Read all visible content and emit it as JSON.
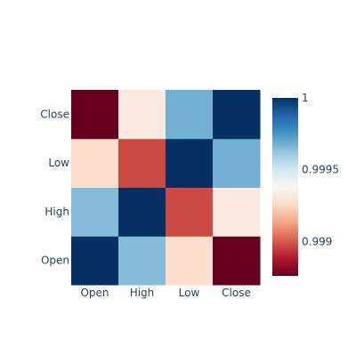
{
  "chart_data": {
    "type": "heatmap",
    "title": "",
    "xlabel": "",
    "ylabel": "",
    "x_categories": [
      "Open",
      "High",
      "Low",
      "Close"
    ],
    "y_categories": [
      "Open",
      "High",
      "Low",
      "Close"
    ],
    "z": [
      [
        1.0,
        0.99965,
        0.99927,
        0.99876
      ],
      [
        0.99965,
        1.0,
        0.99897,
        0.99932
      ],
      [
        0.99927,
        0.99897,
        1.0,
        0.99968
      ],
      [
        0.99876,
        0.99932,
        0.99968,
        1.0
      ]
    ],
    "colorscale": {
      "name": "RdBu",
      "stops": [
        [
          0.0,
          "#67001f"
        ],
        [
          0.1,
          "#b2182b"
        ],
        [
          0.2,
          "#d6604d"
        ],
        [
          0.3,
          "#f4a582"
        ],
        [
          0.4,
          "#fddbc7"
        ],
        [
          0.5,
          "#f7f7f7"
        ],
        [
          0.6,
          "#d1e5f0"
        ],
        [
          0.7,
          "#92c5de"
        ],
        [
          0.8,
          "#4393c3"
        ],
        [
          0.9,
          "#2166ac"
        ],
        [
          1.0,
          "#053061"
        ]
      ]
    },
    "zmin": 0.99876,
    "zmax": 1.0,
    "colorbar": {
      "tickvals": [
        1.0,
        0.9995,
        0.999
      ],
      "ticktext": [
        "1",
        "0.9995",
        "0.999"
      ]
    }
  }
}
